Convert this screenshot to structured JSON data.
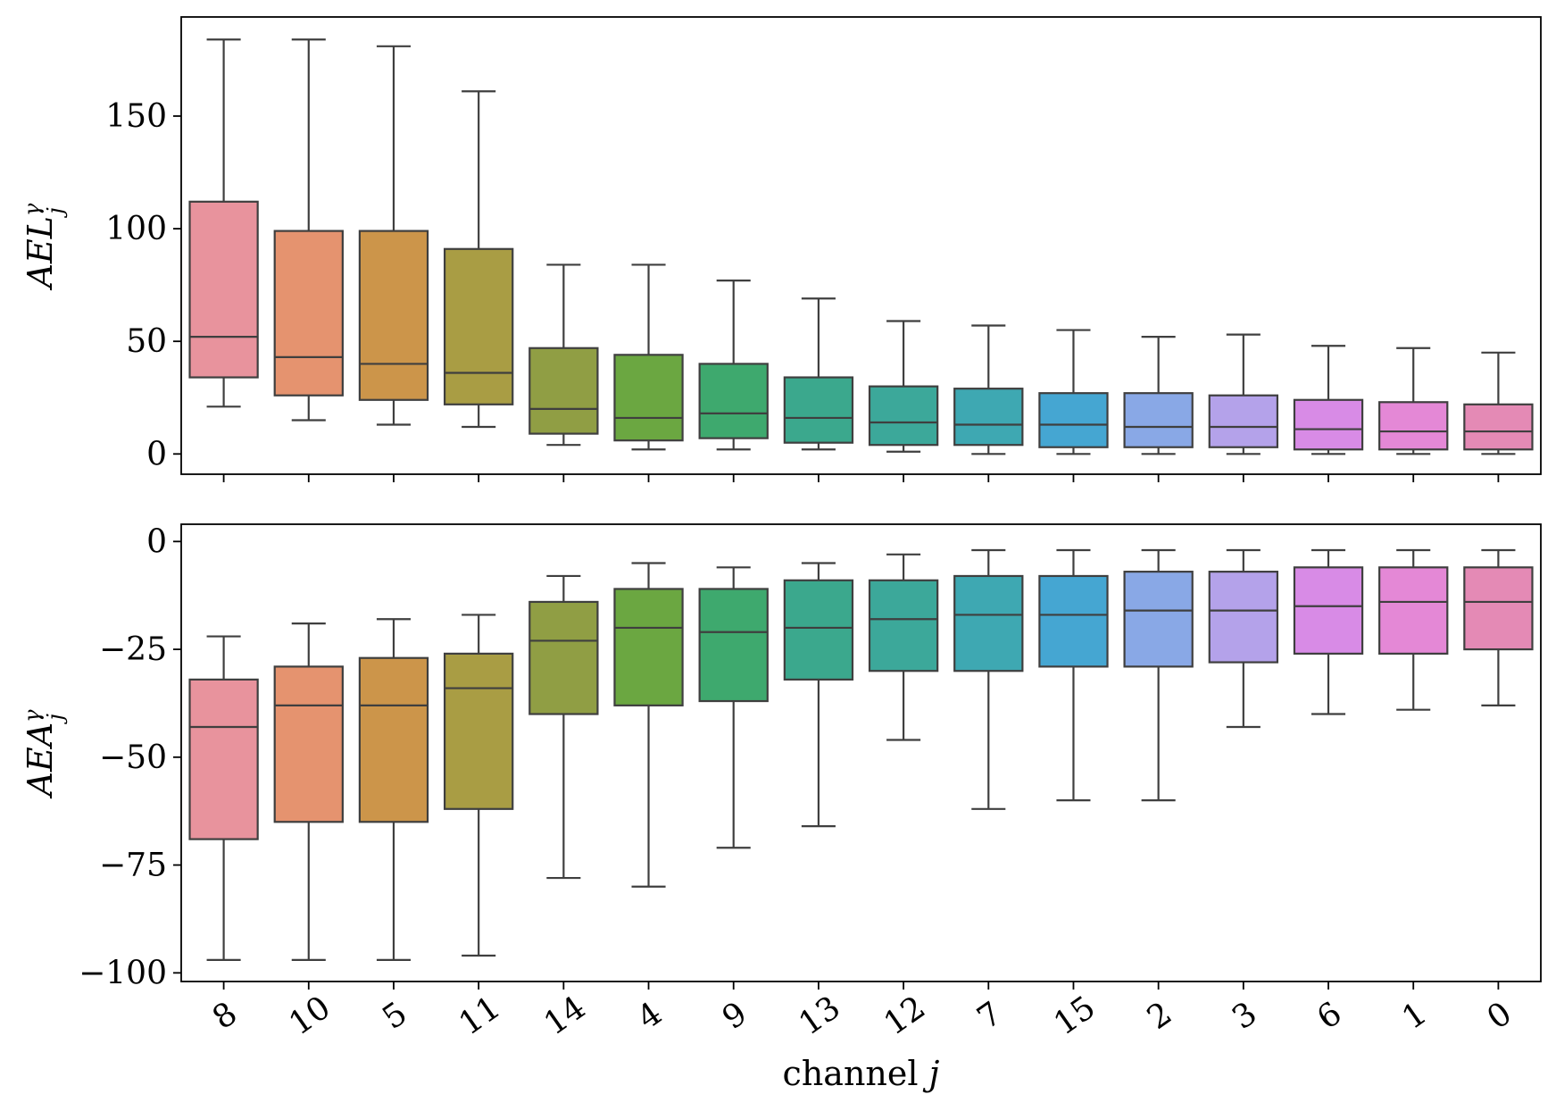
{
  "chart_data": [
    {
      "type": "boxplot",
      "panel": "top",
      "ylabel": "AEL_j^γ",
      "ylabel_parts": {
        "base": "AEL",
        "sub": "j",
        "sup": "γ"
      },
      "ylim": [
        -9,
        194
      ],
      "yticks": [
        0,
        50,
        100,
        150
      ],
      "ytick_labels": [
        "0",
        "50",
        "100",
        "150"
      ],
      "categories": [
        "8",
        "10",
        "5",
        "11",
        "14",
        "4",
        "9",
        "13",
        "12",
        "7",
        "15",
        "2",
        "3",
        "6",
        "1",
        "0"
      ],
      "boxes": [
        {
          "channel": "8",
          "whisker_low": 21,
          "q1": 34,
          "median": 52,
          "q3": 112,
          "whisker_high": 184
        },
        {
          "channel": "10",
          "whisker_low": 15,
          "q1": 26,
          "median": 43,
          "q3": 99,
          "whisker_high": 184
        },
        {
          "channel": "5",
          "whisker_low": 13,
          "q1": 24,
          "median": 40,
          "q3": 99,
          "whisker_high": 181
        },
        {
          "channel": "11",
          "whisker_low": 12,
          "q1": 22,
          "median": 36,
          "q3": 91,
          "whisker_high": 161
        },
        {
          "channel": "14",
          "whisker_low": 4,
          "q1": 9,
          "median": 20,
          "q3": 47,
          "whisker_high": 84
        },
        {
          "channel": "4",
          "whisker_low": 2,
          "q1": 6,
          "median": 16,
          "q3": 44,
          "whisker_high": 84
        },
        {
          "channel": "9",
          "whisker_low": 2,
          "q1": 7,
          "median": 18,
          "q3": 40,
          "whisker_high": 77
        },
        {
          "channel": "13",
          "whisker_low": 2,
          "q1": 5,
          "median": 16,
          "q3": 34,
          "whisker_high": 69
        },
        {
          "channel": "12",
          "whisker_low": 1,
          "q1": 4,
          "median": 14,
          "q3": 30,
          "whisker_high": 59
        },
        {
          "channel": "7",
          "whisker_low": 0,
          "q1": 4,
          "median": 13,
          "q3": 29,
          "whisker_high": 57
        },
        {
          "channel": "15",
          "whisker_low": 0,
          "q1": 3,
          "median": 13,
          "q3": 27,
          "whisker_high": 55
        },
        {
          "channel": "2",
          "whisker_low": 0,
          "q1": 3,
          "median": 12,
          "q3": 27,
          "whisker_high": 52
        },
        {
          "channel": "3",
          "whisker_low": 0,
          "q1": 3,
          "median": 12,
          "q3": 26,
          "whisker_high": 53
        },
        {
          "channel": "6",
          "whisker_low": 0,
          "q1": 2,
          "median": 11,
          "q3": 24,
          "whisker_high": 48
        },
        {
          "channel": "1",
          "whisker_low": 0,
          "q1": 2,
          "median": 10,
          "q3": 23,
          "whisker_high": 47
        },
        {
          "channel": "0",
          "whisker_low": 0,
          "q1": 2,
          "median": 10,
          "q3": 22,
          "whisker_high": 45
        }
      ]
    },
    {
      "type": "boxplot",
      "panel": "bottom",
      "ylabel": "AEA_j^γ",
      "ylabel_parts": {
        "base": "AEA",
        "sub": "j",
        "sup": "γ"
      },
      "xlabel": "channel j",
      "xlabel_parts": {
        "text": "channel ",
        "var": "j"
      },
      "ylim": [
        -102,
        4
      ],
      "yticks": [
        0,
        -25,
        -50,
        -75,
        -100
      ],
      "ytick_labels": [
        "0",
        "−25",
        "−50",
        "−75",
        "−100"
      ],
      "categories": [
        "8",
        "10",
        "5",
        "11",
        "14",
        "4",
        "9",
        "13",
        "12",
        "7",
        "15",
        "2",
        "3",
        "6",
        "1",
        "0"
      ],
      "boxes": [
        {
          "channel": "8",
          "whisker_low": -97,
          "q1": -69,
          "median": -43,
          "q3": -32,
          "whisker_high": -22
        },
        {
          "channel": "10",
          "whisker_low": -97,
          "q1": -65,
          "median": -38,
          "q3": -29,
          "whisker_high": -19
        },
        {
          "channel": "5",
          "whisker_low": -97,
          "q1": -65,
          "median": -38,
          "q3": -27,
          "whisker_high": -18
        },
        {
          "channel": "11",
          "whisker_low": -96,
          "q1": -62,
          "median": -34,
          "q3": -26,
          "whisker_high": -17
        },
        {
          "channel": "14",
          "whisker_low": -78,
          "q1": -40,
          "median": -23,
          "q3": -14,
          "whisker_high": -8
        },
        {
          "channel": "4",
          "whisker_low": -80,
          "q1": -38,
          "median": -20,
          "q3": -11,
          "whisker_high": -5
        },
        {
          "channel": "9",
          "whisker_low": -71,
          "q1": -37,
          "median": -21,
          "q3": -11,
          "whisker_high": -6
        },
        {
          "channel": "13",
          "whisker_low": -66,
          "q1": -32,
          "median": -20,
          "q3": -9,
          "whisker_high": -5
        },
        {
          "channel": "12",
          "whisker_low": -46,
          "q1": -30,
          "median": -18,
          "q3": -9,
          "whisker_high": -3
        },
        {
          "channel": "7",
          "whisker_low": -62,
          "q1": -30,
          "median": -17,
          "q3": -8,
          "whisker_high": -2
        },
        {
          "channel": "15",
          "whisker_low": -60,
          "q1": -29,
          "median": -17,
          "q3": -8,
          "whisker_high": -2
        },
        {
          "channel": "2",
          "whisker_low": -60,
          "q1": -29,
          "median": -16,
          "q3": -7,
          "whisker_high": -2
        },
        {
          "channel": "3",
          "whisker_low": -43,
          "q1": -28,
          "median": -16,
          "q3": -7,
          "whisker_high": -2
        },
        {
          "channel": "6",
          "whisker_low": -40,
          "q1": -26,
          "median": -15,
          "q3": -6,
          "whisker_high": -2
        },
        {
          "channel": "1",
          "whisker_low": -39,
          "q1": -26,
          "median": -14,
          "q3": -6,
          "whisker_high": -2
        },
        {
          "channel": "0",
          "whisker_low": -38,
          "q1": -25,
          "median": -14,
          "q3": -6,
          "whisker_high": -2
        }
      ]
    }
  ],
  "palette": [
    "#e8939d",
    "#e5936f",
    "#cc954a",
    "#a99d44",
    "#909e44",
    "#6ba741",
    "#3ea96e",
    "#3ba88d",
    "#3ca89a",
    "#3ea8b2",
    "#45a6d2",
    "#89a8e6",
    "#b4a2ea",
    "#d88be6",
    "#e488d6",
    "#e48ab5"
  ],
  "colors": {
    "edge": "#3f3f3f",
    "frame": "#000000",
    "background": "#ffffff"
  }
}
